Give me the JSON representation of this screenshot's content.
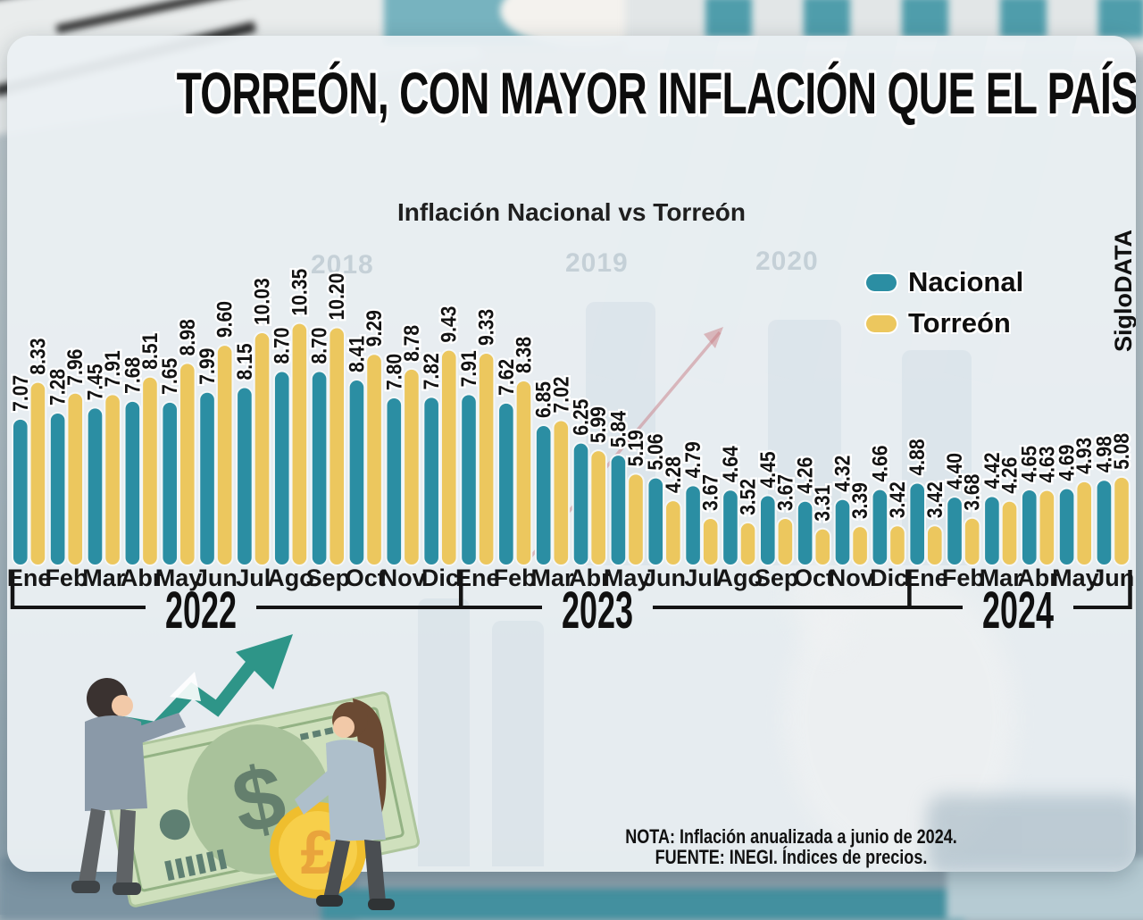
{
  "header": {
    "title": "TORREÓN, CON MAYOR INFLACIÓN QUE EL PAÍS"
  },
  "brand": "SigloDATA",
  "notes": {
    "line1": "NOTA: Inflación anualizada a junio de 2024.",
    "line2": "FUENTE:  INEGI. Índices de precios."
  },
  "background_watermarks": [
    "2018",
    "2019",
    "2020"
  ],
  "chart_data": {
    "type": "bar",
    "title": "Inflación Nacional vs Torreón",
    "orientation": "vertical-paired",
    "grid": false,
    "legend_position": "top-right",
    "value_labels": "rotated-90-above-bars",
    "ylim": [
      2,
      11
    ],
    "categories": [
      "Ene",
      "Feb",
      "Mar",
      "Abr",
      "May",
      "Jun",
      "Jul",
      "Ago",
      "Sep",
      "Oct",
      "Nov",
      "Dic",
      "Ene",
      "Feb",
      "Mar",
      "Abr",
      "May",
      "Jun",
      "Jul",
      "Ago",
      "Sep",
      "Oct",
      "Nov",
      "Dic",
      "Ene",
      "Feb",
      "Mar",
      "Abr",
      "May",
      "Jun"
    ],
    "year_groups": [
      {
        "label": "2022",
        "start": 0,
        "end": 11
      },
      {
        "label": "2023",
        "start": 12,
        "end": 23
      },
      {
        "label": "2024",
        "start": 24,
        "end": 29
      }
    ],
    "series": [
      {
        "name": "Nacional",
        "color": "#2b8ea3",
        "values": [
          7.07,
          7.28,
          7.45,
          7.68,
          7.65,
          7.99,
          8.15,
          8.7,
          8.7,
          8.41,
          7.8,
          7.82,
          7.91,
          7.62,
          6.85,
          6.25,
          5.84,
          5.06,
          4.79,
          4.64,
          4.45,
          4.26,
          4.32,
          4.66,
          4.88,
          4.4,
          4.42,
          4.65,
          4.69,
          4.98
        ]
      },
      {
        "name": "Torreón",
        "color": "#ecc75e",
        "values": [
          8.33,
          7.96,
          7.91,
          8.51,
          8.98,
          9.6,
          10.03,
          10.35,
          10.2,
          9.29,
          8.78,
          9.43,
          9.33,
          8.38,
          7.02,
          5.99,
          5.19,
          4.28,
          3.67,
          3.52,
          3.67,
          3.31,
          3.39,
          3.42,
          3.42,
          3.68,
          4.26,
          4.63,
          4.93,
          5.08
        ]
      }
    ]
  }
}
